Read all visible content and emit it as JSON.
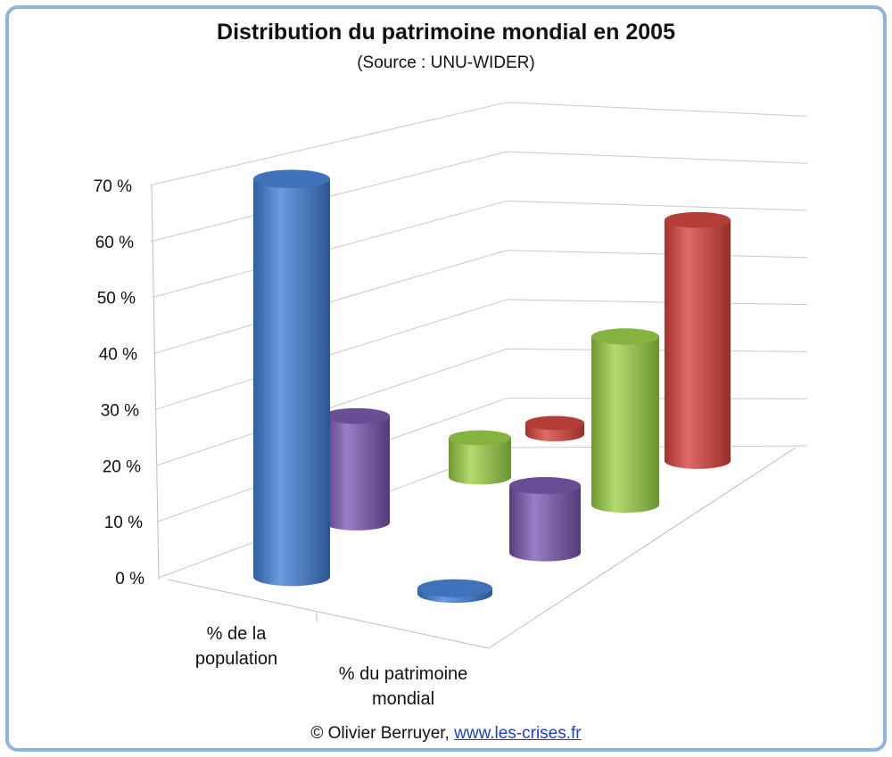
{
  "title": "Distribution du patrimoine mondial en 2005",
  "subtitle": "(Source : UNU-WIDER)",
  "footer": {
    "copyright": "© Olivier Berruyer,",
    "link_text": "www.les-crises.fr"
  },
  "colors": {
    "blue": "#4a7fc8",
    "purple": "#7d5aa8",
    "green": "#94c04a",
    "red": "#cc4a45",
    "frame": "#8fb3e0"
  },
  "chart_data": {
    "type": "bar",
    "style": "3d-cylinder",
    "categories": [
      "% de la population",
      "% du patrimoine mondial"
    ],
    "series": [
      {
        "color": "#4a7fc8",
        "values": [
          71,
          1
        ]
      },
      {
        "color": "#7d5aa8",
        "values": [
          19,
          12
        ]
      },
      {
        "color": "#94c04a",
        "values": [
          7,
          30
        ]
      },
      {
        "color": "#cc4a45",
        "values": [
          2,
          43
        ]
      }
    ],
    "y_ticks": [
      "0 %",
      "10 %",
      "20 %",
      "30 %",
      "40 %",
      "50 %",
      "60 %",
      "70 %"
    ],
    "ylim": [
      0,
      70
    ],
    "grid": true
  }
}
